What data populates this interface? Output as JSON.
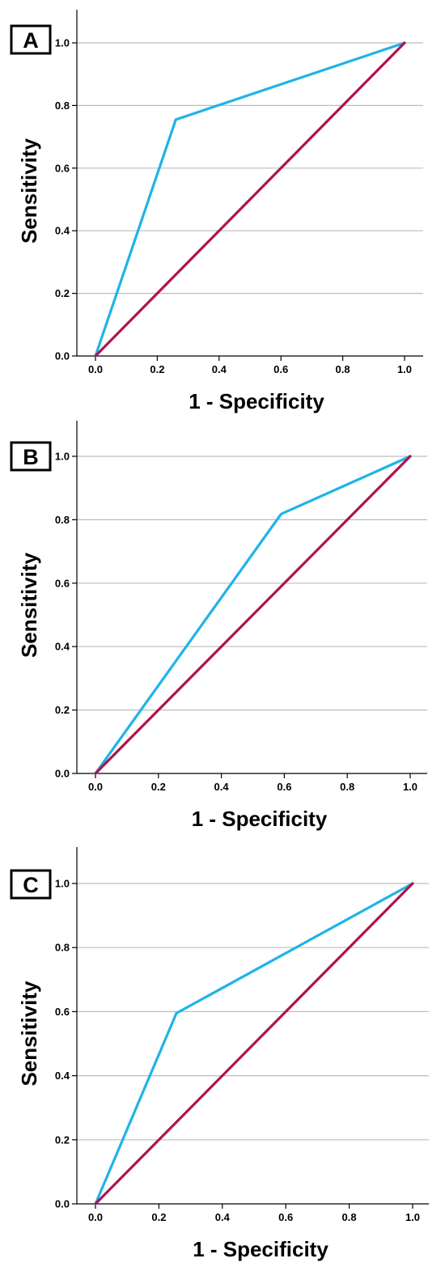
{
  "chart_data": [
    {
      "type": "line",
      "panel_label": "A",
      "xlabel": "1 - Specificity",
      "ylabel": "Sensitivity",
      "xlim": [
        0,
        1
      ],
      "ylim": [
        0,
        1
      ],
      "xticks": [
        "0.0",
        "0.2",
        "0.4",
        "0.6",
        "0.8",
        "1.0"
      ],
      "yticks": [
        "0.0",
        "0.2",
        "0.4",
        "0.6",
        "0.8",
        "1.0"
      ],
      "grid": "horizontal",
      "series": [
        {
          "color": "#1eb4e8",
          "x": [
            0.0,
            0.26,
            1.0
          ],
          "y": [
            0.0,
            0.755,
            1.0
          ]
        },
        {
          "color": "#b0124f",
          "x": [
            0.0,
            1.0
          ],
          "y": [
            0.0,
            1.0
          ]
        }
      ]
    },
    {
      "type": "line",
      "panel_label": "B",
      "xlabel": "1 - Specificity",
      "ylabel": "Sensitivity",
      "xlim": [
        0,
        1
      ],
      "ylim": [
        0,
        1
      ],
      "xticks": [
        "0.0",
        "0.2",
        "0.4",
        "0.6",
        "0.8",
        "1.0"
      ],
      "yticks": [
        "0.0",
        "0.2",
        "0.4",
        "0.6",
        "0.8",
        "1.0"
      ],
      "grid": "horizontal",
      "series": [
        {
          "color": "#1eb4e8",
          "x": [
            0.0,
            0.59,
            1.0
          ],
          "y": [
            0.0,
            0.818,
            1.0
          ]
        },
        {
          "color": "#b0124f",
          "x": [
            0.0,
            1.0
          ],
          "y": [
            0.0,
            1.0
          ]
        }
      ]
    },
    {
      "type": "line",
      "panel_label": "C",
      "xlabel": "1 - Specificity",
      "ylabel": "Sensitivity",
      "xlim": [
        0,
        1
      ],
      "ylim": [
        0,
        1
      ],
      "xticks": [
        "0.0",
        "0.2",
        "0.4",
        "0.6",
        "0.8",
        "1.0"
      ],
      "yticks": [
        "0.0",
        "0.2",
        "0.4",
        "0.6",
        "0.8",
        "1.0"
      ],
      "grid": "horizontal",
      "series": [
        {
          "color": "#1eb4e8",
          "x": [
            0.0,
            0.255,
            1.0
          ],
          "y": [
            0.0,
            0.595,
            1.0
          ]
        },
        {
          "color": "#b0124f",
          "x": [
            0.0,
            1.0
          ],
          "y": [
            0.0,
            1.0
          ]
        }
      ]
    }
  ]
}
